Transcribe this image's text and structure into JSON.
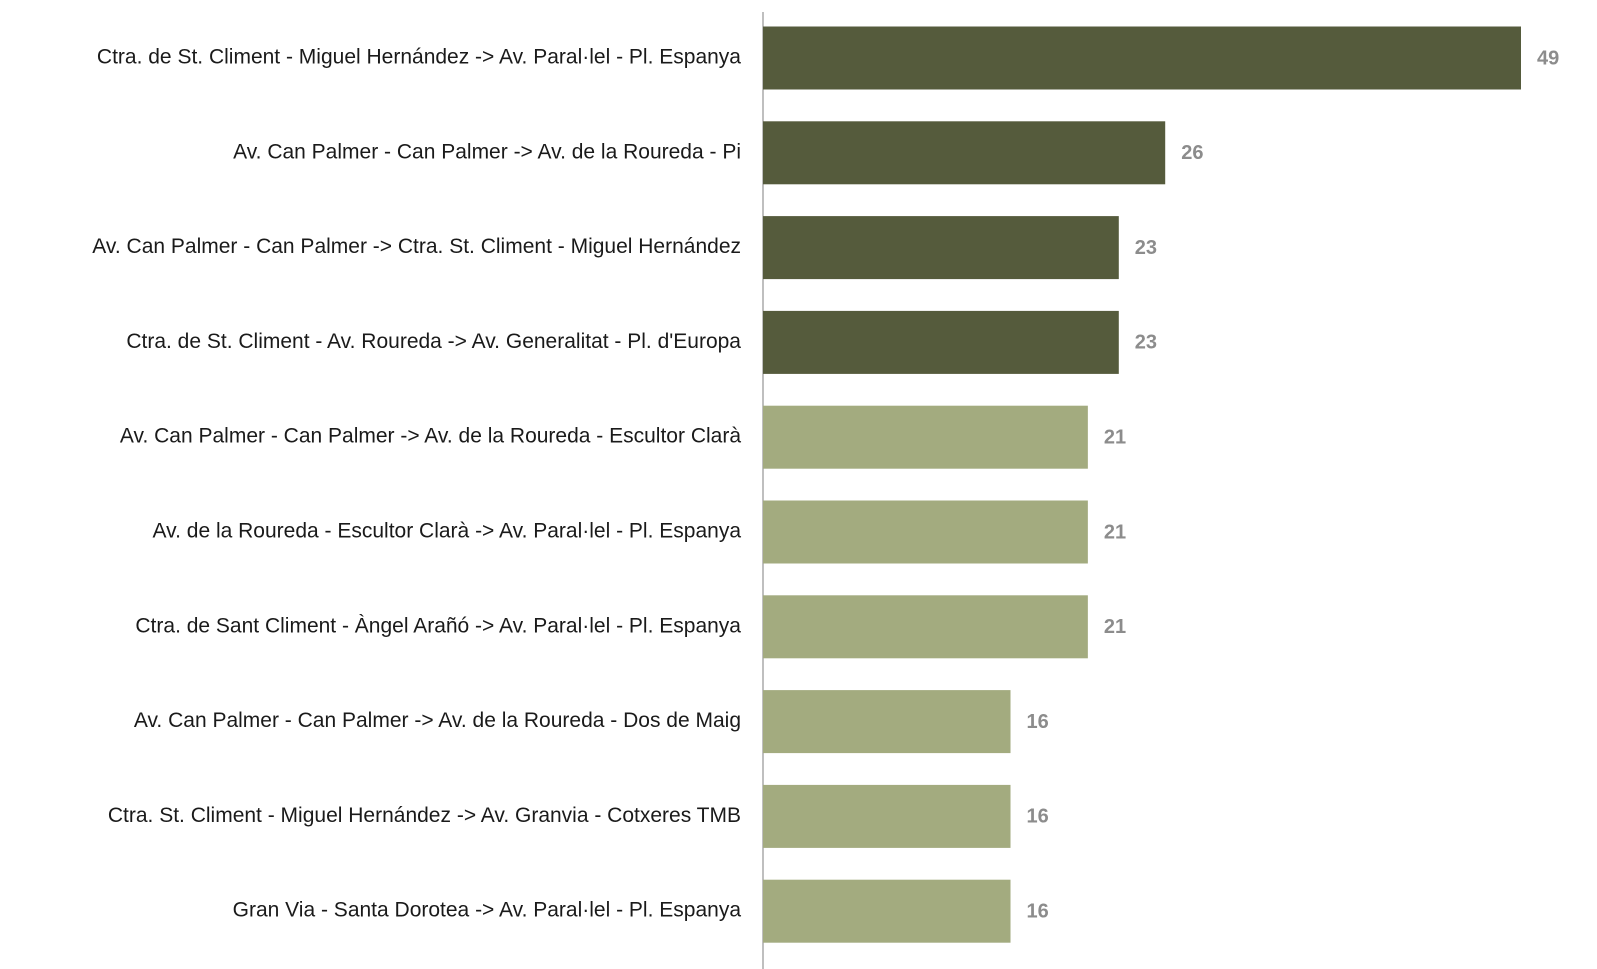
{
  "chart_data": {
    "type": "bar",
    "orientation": "horizontal",
    "categories": [
      "Ctra. de St. Climent - Miguel Hernández -> Av. Paral·lel - Pl. Espanya",
      "Av. Can Palmer - Can Palmer -> Av. de la Roureda - Pi",
      "Av. Can Palmer - Can Palmer -> Ctra. St. Climent - Miguel Hernández",
      "Ctra. de St. Climent - Av. Roureda -> Av. Generalitat - Pl. d'Europa",
      "Av. Can Palmer - Can Palmer -> Av. de la Roureda - Escultor Clarà",
      "Av. de la Roureda - Escultor Clarà -> Av. Paral·lel - Pl. Espanya",
      "Ctra. de Sant Climent - Àngel Arañó -> Av. Paral·lel - Pl. Espanya",
      "Av. Can Palmer - Can Palmer -> Av. de la Roureda - Dos de Maig",
      "Ctra. St. Climent - Miguel Hernández -> Av. Granvia - Cotxeres TMB",
      "Gran Via - Santa Dorotea -> Av. Paral·lel - Pl. Espanya"
    ],
    "values": [
      49,
      26,
      23,
      23,
      21,
      21,
      21,
      16,
      16,
      16
    ],
    "colors": [
      "#555b3c",
      "#555b3c",
      "#555b3c",
      "#555b3c",
      "#a3ab7f",
      "#a3ab7f",
      "#a3ab7f",
      "#a3ab7f",
      "#a3ab7f",
      "#a3ab7f"
    ]
  }
}
